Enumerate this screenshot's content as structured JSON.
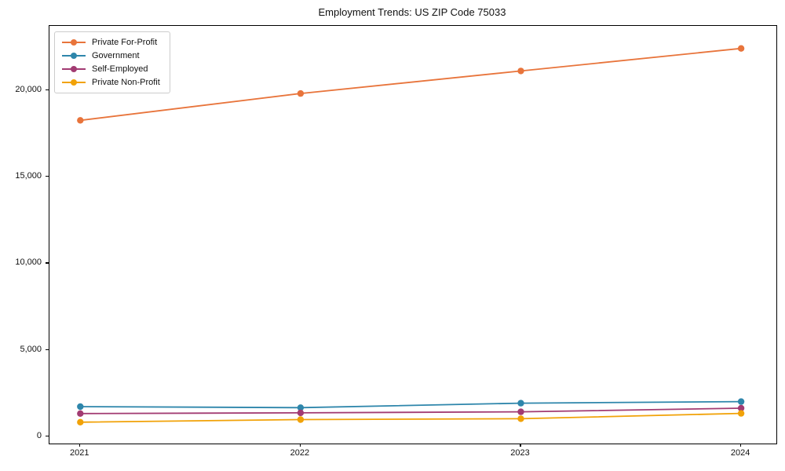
{
  "chart_data": {
    "type": "line",
    "title": "Employment Trends: US ZIP Code 75033",
    "x": [
      2021,
      2022,
      2023,
      2024
    ],
    "x_tick_labels": [
      "2021",
      "2022",
      "2023",
      "2024"
    ],
    "series": [
      {
        "name": "Private For-Profit",
        "color": "#e8743b",
        "values": [
          18250,
          19800,
          21100,
          22400
        ]
      },
      {
        "name": "Government",
        "color": "#2e86ab",
        "values": [
          1730,
          1670,
          1930,
          2020
        ]
      },
      {
        "name": "Self-Employed",
        "color": "#a23b72",
        "values": [
          1330,
          1370,
          1430,
          1640
        ]
      },
      {
        "name": "Private Non-Profit",
        "color": "#f1a208",
        "values": [
          830,
          980,
          1030,
          1340
        ]
      }
    ],
    "yticks": [
      {
        "value": 0,
        "label": "0"
      },
      {
        "value": 5000,
        "label": "5,000"
      },
      {
        "value": 10000,
        "label": "10,000"
      },
      {
        "value": 15000,
        "label": "15,000"
      },
      {
        "value": 20000,
        "label": "20,000"
      }
    ],
    "xlim": [
      2020.86,
      2024.16
    ],
    "ylim": [
      -400,
      23700
    ],
    "legend_position": "upper-left",
    "grid": false,
    "marker": "circle",
    "line_width": 1.8,
    "marker_radius": 4.2
  }
}
